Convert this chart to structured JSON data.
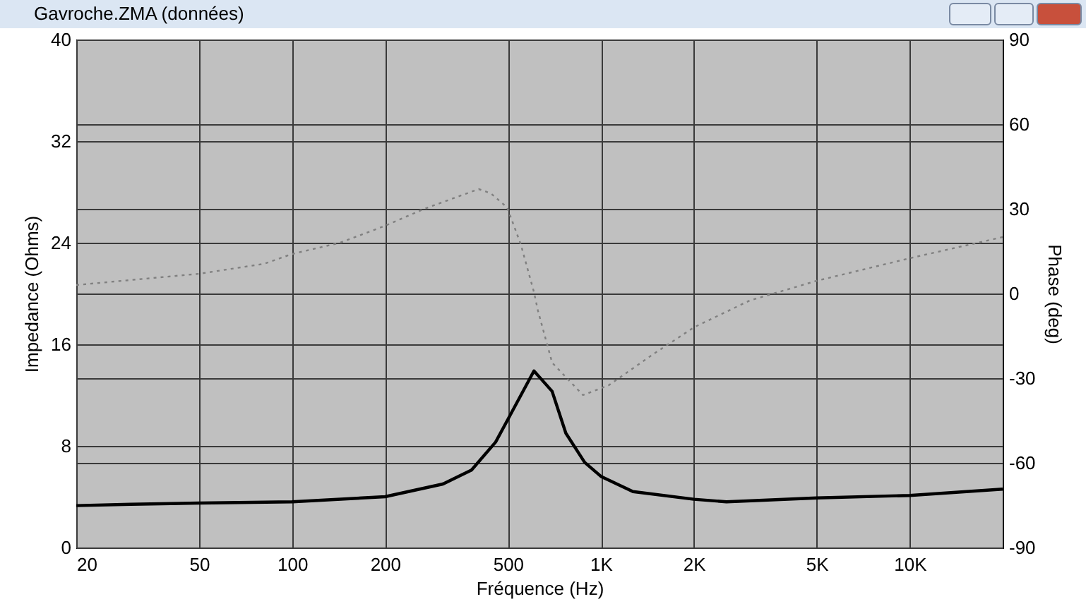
{
  "chart_data": {
    "type": "line",
    "title": "Gavroche.ZMA (données)",
    "xlabel": "Fréquence (Hz)",
    "ylabel": "Impedance (Ohms)",
    "y2label": "Phase (deg)",
    "log": "x",
    "grid": true,
    "xlim": [
      20,
      20000
    ],
    "xticks": [
      20,
      50,
      100,
      200,
      500,
      {
        "value": 1000,
        "label": "1K"
      },
      {
        "value": 2000,
        "label": "2K"
      },
      {
        "value": 5000,
        "label": "5K"
      },
      {
        "value": 10000,
        "label": "10K"
      }
    ],
    "ylim": [
      0,
      40
    ],
    "yticks": [
      0,
      8,
      16,
      24,
      32,
      40
    ],
    "y2lim": [
      -90,
      90
    ],
    "y2ticks": [
      -90,
      -60,
      -30,
      0,
      30,
      60,
      90
    ],
    "series": [
      {
        "color": "#000000",
        "x": [
          20,
          30,
          50,
          100,
          200,
          308,
          381,
          456,
          500,
          607,
          695,
          770,
          886,
          1000,
          1270,
          2000,
          2550,
          5000,
          10000,
          20000
        ],
        "values": [
          3.3,
          3.4,
          3.5,
          3.6,
          4.0,
          5.0,
          6.1,
          8.3,
          10.1,
          13.9,
          12.3,
          9.0,
          6.7,
          5.6,
          4.4,
          3.8,
          3.6,
          3.9,
          4.1,
          4.6
        ]
      },
      {
        "color": "#808080",
        "axis": "y2",
        "line_style": "dotted",
        "x": [
          20,
          50,
          81,
          100,
          143,
          200,
          268,
          402,
          440,
          497,
          550,
          607,
          625,
          695,
          875,
          1060,
          1500,
          2000,
          3030,
          5000,
          10000,
          20000
        ],
        "values": [
          3,
          7,
          10.5,
          14,
          18,
          24,
          30,
          37,
          35.5,
          30.5,
          17.5,
          0.5,
          -6,
          -24.5,
          -36,
          -32.5,
          -21,
          -12,
          -2.5,
          4.5,
          12.5,
          20
        ]
      }
    ]
  }
}
